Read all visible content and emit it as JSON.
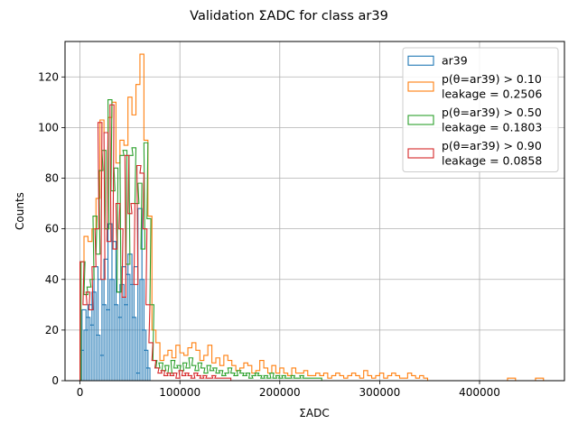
{
  "chart_data": {
    "type": "histogram",
    "title": "Validation ΣADC for class ar39",
    "xlabel": "ΣADC",
    "ylabel": "Counts",
    "xlim": [
      -15000,
      485000
    ],
    "ylim": [
      0,
      134
    ],
    "grid": true,
    "legend_position": "top-right",
    "bin_width": 4000,
    "xticks": [
      {
        "value": 0,
        "label": "0"
      },
      {
        "value": 100000,
        "label": "100000"
      },
      {
        "value": 200000,
        "label": "200000"
      },
      {
        "value": 300000,
        "label": "300000"
      },
      {
        "value": 400000,
        "label": "400000"
      }
    ],
    "yticks": [
      {
        "value": 0,
        "label": "0"
      },
      {
        "value": 20,
        "label": "20"
      },
      {
        "value": 40,
        "label": "40"
      },
      {
        "value": 60,
        "label": "60"
      },
      {
        "value": 80,
        "label": "80"
      },
      {
        "value": 100,
        "label": "100"
      },
      {
        "value": 120,
        "label": "120"
      }
    ],
    "series": [
      {
        "name": "ar39",
        "legend_lines": [
          "ar39"
        ],
        "color": "#1f77b4",
        "x": [
          2000,
          4000,
          6000,
          8000,
          10000,
          12000,
          14000,
          16000,
          18000,
          20000,
          22000,
          24000,
          26000,
          28000,
          30000,
          32000,
          34000,
          36000,
          38000,
          40000,
          42000,
          44000,
          46000,
          48000,
          50000,
          52000,
          54000,
          56000,
          58000,
          60000,
          62000,
          64000,
          66000,
          68000
        ],
        "y": [
          12,
          28,
          20,
          25,
          30,
          22,
          35,
          45,
          18,
          40,
          10,
          30,
          48,
          28,
          62,
          40,
          55,
          30,
          35,
          25,
          38,
          45,
          30,
          42,
          50,
          38,
          25,
          45,
          3,
          68,
          40,
          20,
          12,
          5
        ]
      },
      {
        "name": "p(θ=ar39) > 0.10",
        "legend_lines": [
          "p(θ=ar39) > 0.10",
          "leakage = 0.2506"
        ],
        "color": "#ff7f0e",
        "x": [
          2000,
          6000,
          10000,
          14000,
          18000,
          22000,
          26000,
          30000,
          34000,
          38000,
          42000,
          46000,
          50000,
          54000,
          58000,
          62000,
          66000,
          70000,
          74000,
          78000,
          82000,
          86000,
          90000,
          94000,
          98000,
          102000,
          106000,
          110000,
          114000,
          118000,
          122000,
          126000,
          130000,
          134000,
          138000,
          142000,
          146000,
          150000,
          154000,
          158000,
          162000,
          166000,
          170000,
          174000,
          178000,
          182000,
          186000,
          190000,
          194000,
          198000,
          202000,
          206000,
          210000,
          214000,
          218000,
          222000,
          226000,
          230000,
          234000,
          238000,
          242000,
          246000,
          250000,
          254000,
          258000,
          262000,
          266000,
          270000,
          274000,
          278000,
          282000,
          286000,
          290000,
          294000,
          298000,
          302000,
          306000,
          310000,
          314000,
          318000,
          322000,
          326000,
          330000,
          334000,
          338000,
          342000,
          346000,
          430000,
          434000,
          458000,
          462000
        ],
        "y": [
          47,
          57,
          55,
          60,
          72,
          103,
          98,
          104,
          110,
          86,
          95,
          93,
          112,
          105,
          117,
          129,
          95,
          65,
          20,
          15,
          8,
          10,
          12,
          9,
          14,
          11,
          10,
          13,
          15,
          12,
          8,
          10,
          14,
          7,
          9,
          6,
          10,
          8,
          6,
          4,
          5,
          7,
          6,
          3,
          4,
          8,
          5,
          3,
          6,
          3,
          5,
          3,
          2,
          5,
          3,
          3,
          4,
          2,
          2,
          3,
          2,
          3,
          1,
          2,
          3,
          2,
          1,
          2,
          3,
          2,
          1,
          4,
          2,
          1,
          2,
          3,
          1,
          2,
          3,
          2,
          1,
          1,
          3,
          2,
          1,
          2,
          1,
          1,
          1,
          1,
          1
        ]
      },
      {
        "name": "p(θ=ar39) > 0.50",
        "legend_lines": [
          "p(θ=ar39) > 0.50",
          "leakage = 0.1803"
        ],
        "color": "#2ca02c",
        "x": [
          3000,
          6000,
          9000,
          12000,
          15000,
          18000,
          21000,
          24000,
          27000,
          30000,
          33000,
          36000,
          39000,
          42000,
          45000,
          48000,
          51000,
          54000,
          57000,
          60000,
          63000,
          66000,
          69000,
          72000,
          75000,
          78000,
          81000,
          84000,
          87000,
          90000,
          93000,
          96000,
          99000,
          102000,
          105000,
          108000,
          111000,
          114000,
          117000,
          120000,
          123000,
          126000,
          129000,
          132000,
          135000,
          138000,
          141000,
          144000,
          147000,
          150000,
          153000,
          156000,
          159000,
          162000,
          165000,
          168000,
          171000,
          174000,
          177000,
          180000,
          183000,
          186000,
          189000,
          192000,
          195000,
          198000,
          201000,
          204000,
          207000,
          210000,
          213000,
          216000,
          219000,
          222000,
          225000,
          228000,
          231000,
          234000,
          237000,
          240000
        ],
        "y": [
          47,
          34,
          37,
          40,
          65,
          50,
          83,
          91,
          60,
          111,
          75,
          84,
          35,
          89,
          91,
          46,
          89,
          92,
          70,
          78,
          52,
          94,
          64,
          30,
          8,
          5,
          7,
          4,
          6,
          3,
          8,
          5,
          6,
          4,
          7,
          5,
          9,
          6,
          4,
          7,
          5,
          3,
          6,
          4,
          5,
          3,
          4,
          2,
          3,
          5,
          3,
          2,
          4,
          3,
          2,
          3,
          1,
          2,
          3,
          2,
          1,
          2,
          1,
          3,
          1,
          2,
          1,
          2,
          1,
          1,
          2,
          1,
          1,
          2,
          1,
          1,
          1,
          1,
          1,
          1
        ]
      },
      {
        "name": "p(θ=ar39) > 0.90",
        "legend_lines": [
          "p(θ=ar39) > 0.90",
          "leakage = 0.0858"
        ],
        "color": "#d62728",
        "x": [
          2000,
          5000,
          8000,
          11000,
          14000,
          17000,
          20000,
          23000,
          26000,
          29000,
          32000,
          35000,
          38000,
          41000,
          44000,
          47000,
          50000,
          53000,
          56000,
          59000,
          62000,
          65000,
          68000,
          71000,
          74000,
          77000,
          80000,
          83000,
          86000,
          89000,
          92000,
          95000,
          98000,
          101000,
          104000,
          107000,
          110000,
          113000,
          116000,
          119000,
          122000,
          125000,
          128000,
          131000,
          134000,
          137000,
          140000,
          143000,
          146000,
          149000
        ],
        "y": [
          47,
          30,
          35,
          28,
          45,
          60,
          102,
          40,
          98,
          55,
          109,
          52,
          70,
          60,
          33,
          89,
          66,
          70,
          38,
          85,
          82,
          60,
          30,
          15,
          8,
          5,
          3,
          4,
          2,
          3,
          2,
          3,
          1,
          4,
          2,
          3,
          2,
          1,
          3,
          2,
          1,
          2,
          1,
          1,
          2,
          1,
          1,
          1,
          1,
          1
        ]
      }
    ]
  }
}
